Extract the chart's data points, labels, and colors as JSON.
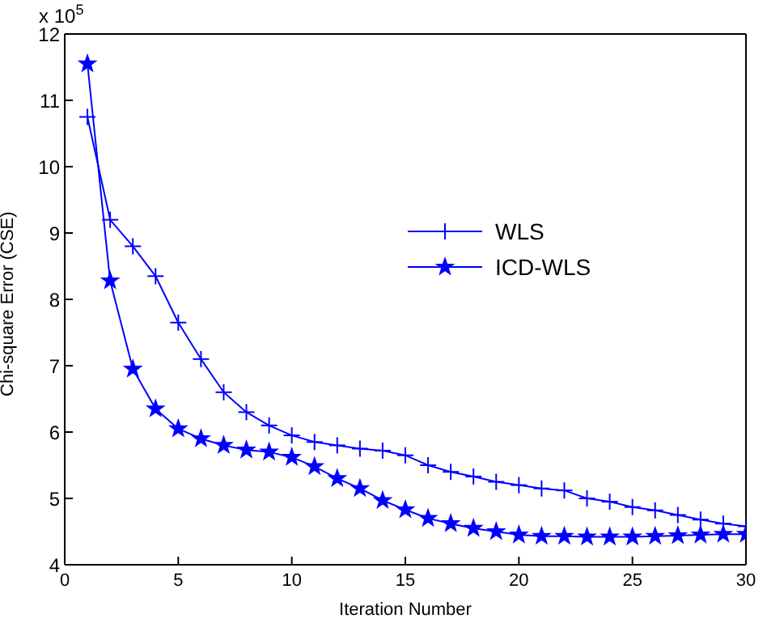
{
  "chart_data": {
    "type": "line",
    "xlabel": "Iteration Number",
    "ylabel": "Chi-square Error (CSE)",
    "annotations": [
      "x 10$^{5}$"
    ],
    "x": [
      1,
      2,
      3,
      4,
      5,
      6,
      7,
      8,
      9,
      10,
      11,
      12,
      13,
      14,
      15,
      16,
      17,
      18,
      19,
      20,
      21,
      22,
      23,
      24,
      25,
      26,
      27,
      28,
      29,
      30
    ],
    "series": [
      {
        "name": "WLS",
        "color": "#0000ff",
        "marker": "cross",
        "values": [
          10.75,
          9.2,
          8.8,
          8.35,
          7.65,
          7.1,
          6.6,
          6.3,
          6.1,
          5.95,
          5.85,
          5.8,
          5.75,
          5.72,
          5.65,
          5.5,
          5.4,
          5.33,
          5.25,
          5.2,
          5.15,
          5.12,
          5.0,
          4.95,
          4.87,
          4.82,
          4.75,
          4.68,
          4.62,
          4.58
        ]
      },
      {
        "name": "ICD-WLS",
        "color": "#0000ff",
        "marker": "star",
        "values": [
          11.55,
          8.28,
          6.95,
          6.35,
          6.05,
          5.9,
          5.8,
          5.73,
          5.7,
          5.62,
          5.48,
          5.3,
          5.15,
          4.97,
          4.83,
          4.7,
          4.62,
          4.55,
          4.5,
          4.45,
          4.43,
          4.43,
          4.42,
          4.42,
          4.42,
          4.43,
          4.44,
          4.45,
          4.46,
          4.46
        ]
      }
    ],
    "xlim": [
      0,
      30
    ],
    "xticks": [
      0,
      5,
      10,
      15,
      20,
      25,
      30
    ],
    "ylim": [
      4,
      12
    ],
    "yticks": [
      4,
      5,
      6,
      7,
      8,
      9,
      10,
      11,
      12
    ],
    "grid": false,
    "legend": "right",
    "line_style": "solid"
  }
}
